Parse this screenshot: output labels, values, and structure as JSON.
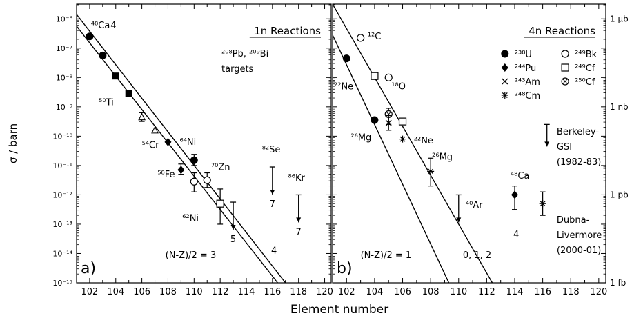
{
  "chart_data": [
    {
      "type": "scatter",
      "panel_label": "a)",
      "title": "1n Reactions",
      "subtitle_lines": [
        "²⁰⁸Pb, ²⁰⁹Bi",
        "targets"
      ],
      "xlabel": "Element number",
      "ylabel": "σ / barn",
      "xlim": [
        101,
        120.5
      ],
      "ylim_log10": [
        -15,
        -5.5
      ],
      "x_ticks": [
        102,
        104,
        106,
        108,
        110,
        112,
        114,
        116,
        118,
        120
      ],
      "y_ticks_log10": [
        -15,
        -14,
        -13,
        -12,
        -11,
        -10,
        -9,
        -8,
        -7,
        -6
      ],
      "y_tick_labels": [
        "10⁻¹⁵",
        "10⁻¹⁴",
        "10⁻¹³",
        "10⁻¹²",
        "10⁻¹¹",
        "10⁻¹⁰",
        "10⁻⁹",
        "10⁻⁸",
        "10⁻⁷",
        "10⁻⁶"
      ],
      "fit_lines": [
        {
          "label": "(N-Z)/2 = 3",
          "x": [
            101,
            117
          ],
          "log10_y": [
            -5.85,
            -15
          ]
        },
        {
          "label": "4",
          "x": [
            101,
            116.4
          ],
          "log10_y": [
            -6.25,
            -15
          ]
        }
      ],
      "series": [
        {
          "marker": "filled-circle",
          "points": [
            {
              "x": 102,
              "log10_y": -6.6
            },
            {
              "x": 103,
              "log10_y": -7.25
            },
            {
              "x": 110,
              "log10_y": -10.82,
              "err_log10": [
                -11.0,
                -10.62
              ]
            }
          ]
        },
        {
          "marker": "filled-square",
          "points": [
            {
              "x": 104,
              "log10_y": -7.95
            },
            {
              "x": 105,
              "log10_y": -8.55
            }
          ]
        },
        {
          "marker": "open-triangle",
          "points": [
            {
              "x": 106,
              "log10_y": -9.35,
              "err_log10": [
                -9.5,
                -9.2
              ]
            },
            {
              "x": 107,
              "log10_y": -9.8
            }
          ]
        },
        {
          "marker": "filled-diamond",
          "points": [
            {
              "x": 108,
              "log10_y": -10.2
            },
            {
              "x": 109,
              "log10_y": -11.15,
              "err_log10": [
                -11.3,
                -10.95
              ]
            }
          ]
        },
        {
          "marker": "open-circle",
          "points": [
            {
              "x": 110,
              "log10_y": -11.55,
              "err_log10": [
                -11.9,
                -11.25
              ]
            },
            {
              "x": 111,
              "log10_y": -11.5,
              "err_log10": [
                -11.75,
                -11.25
              ]
            }
          ]
        },
        {
          "marker": "open-square",
          "points": [
            {
              "x": 112,
              "log10_y": -12.3,
              "err_log10": [
                -13.0,
                -11.8
              ]
            }
          ]
        }
      ],
      "upper_limits": [
        {
          "x": 113,
          "log10_y": -12.25,
          "label": "5"
        },
        {
          "x": 116,
          "log10_y": -11.05,
          "label": "7"
        },
        {
          "x": 118,
          "log10_y": -12.0,
          "label": "7"
        }
      ],
      "annotations": [
        {
          "text": "⁴⁸Ca",
          "x": 102.1,
          "log10_y": -6.32
        },
        {
          "text": "4",
          "x": 103.6,
          "log10_y": -6.32
        },
        {
          "text": "⁵⁰Ti",
          "x": 102.7,
          "log10_y": -8.95
        },
        {
          "text": "⁵⁴Cr",
          "x": 106.0,
          "log10_y": -10.4
        },
        {
          "text": "⁶⁴Ni",
          "x": 108.9,
          "log10_y": -10.3
        },
        {
          "text": "⁵⁸Fe",
          "x": 107.2,
          "log10_y": -11.4
        },
        {
          "text": "⁷⁰Zn",
          "x": 111.3,
          "log10_y": -11.15
        },
        {
          "text": "⁸²Se",
          "x": 115.2,
          "log10_y": -10.55
        },
        {
          "text": "⁸⁶Kr",
          "x": 117.2,
          "log10_y": -11.52
        },
        {
          "text": "⁶²Ni",
          "x": 109.1,
          "log10_y": -12.9
        },
        {
          "text": "(N-Z)/2 = 3",
          "x": 107.8,
          "log10_y": -14.15
        },
        {
          "text": "4",
          "x": 115.9,
          "log10_y": -14.0
        }
      ]
    },
    {
      "type": "scatter",
      "panel_label": "b)",
      "title": "4n Reactions",
      "xlabel": "Element number",
      "ylabel_right": "",
      "xlim": [
        101,
        120.5
      ],
      "ylim_log10": [
        -15,
        -5.5
      ],
      "x_ticks": [
        102,
        104,
        106,
        108,
        110,
        112,
        114,
        116,
        118,
        120
      ],
      "right_ticks_log10": [
        -6,
        -9,
        -12,
        -15
      ],
      "right_tick_labels": [
        "1 μb",
        "1 nb",
        "1 pb",
        "1 fb"
      ],
      "legend": [
        {
          "marker": "filled-circle",
          "label": "²³⁸U"
        },
        {
          "marker": "filled-diamond",
          "label": "²⁴⁴Pu"
        },
        {
          "marker": "cross",
          "label": "²⁴³Am"
        },
        {
          "marker": "asterisk",
          "label": "²⁴⁸Cm"
        },
        {
          "marker": "open-circle",
          "label": "²⁴⁹Bk"
        },
        {
          "marker": "open-square",
          "label": "²⁴⁹Cf"
        },
        {
          "marker": "circle-cross",
          "label": "²⁵⁰Cf"
        }
      ],
      "fit_lines": [
        {
          "label": "(N-Z)/2 = 1",
          "x": [
            101,
            109.3
          ],
          "log10_y": [
            -6.55,
            -15
          ]
        },
        {
          "label": "0, 1, 2",
          "x": [
            101,
            112.4
          ],
          "log10_y": [
            -5.5,
            -15
          ]
        }
      ],
      "series": [
        {
          "marker": "filled-circle",
          "points": [
            {
              "x": 102,
              "log10_y": -7.35
            },
            {
              "x": 104,
              "log10_y": -9.45
            }
          ]
        },
        {
          "marker": "open-circle",
          "points": [
            {
              "x": 103,
              "log10_y": -6.65
            },
            {
              "x": 105,
              "log10_y": -8.0
            }
          ]
        },
        {
          "marker": "open-square",
          "points": [
            {
              "x": 104,
              "log10_y": -7.95
            },
            {
              "x": 106,
              "log10_y": -9.5
            }
          ]
        },
        {
          "marker": "circle-cross",
          "points": [
            {
              "x": 105,
              "log10_y": -9.25,
              "err_log10": [
                -9.6,
                -9.05
              ]
            }
          ]
        },
        {
          "marker": "cross",
          "points": [
            {
              "x": 105,
              "log10_y": -9.55,
              "err_log10": [
                -9.8,
                -9.3
              ]
            }
          ]
        },
        {
          "marker": "asterisk",
          "points": [
            {
              "x": 106,
              "log10_y": -10.1
            },
            {
              "x": 108,
              "log10_y": -11.2,
              "err_log10": [
                -11.7,
                -10.75
              ]
            }
          ]
        },
        {
          "marker": "filled-diamond",
          "points": [
            {
              "x": 114,
              "log10_y": -12.0,
              "err_log10": [
                -12.5,
                -11.7
              ]
            }
          ]
        },
        {
          "marker": "asterisk",
          "points": [
            {
              "x": 116,
              "log10_y": -12.3,
              "err_log10": [
                -12.7,
                -11.9
              ]
            }
          ]
        }
      ],
      "upper_limits": [
        {
          "x": 110,
          "log10_y": -12.0,
          "label": ""
        }
      ],
      "annotations": [
        {
          "text": "¹²C",
          "x": 103.5,
          "log10_y": -6.7
        },
        {
          "text": "¹⁸O",
          "x": 105.2,
          "log10_y": -8.4
        },
        {
          "text": "²²Ne",
          "x": 101.1,
          "log10_y": -8.4
        },
        {
          "text": "²²Ne",
          "x": 106.8,
          "log10_y": -10.25
        },
        {
          "text": "²⁶Mg",
          "x": 102.3,
          "log10_y": -10.15
        },
        {
          "text": "²⁶Mg",
          "x": 108.1,
          "log10_y": -10.8
        },
        {
          "text": "⁴⁰Ar",
          "x": 110.5,
          "log10_y": -12.45
        },
        {
          "text": "⁴⁸Ca",
          "x": 113.7,
          "log10_y": -11.45
        },
        {
          "text": "4",
          "x": 113.9,
          "log10_y": -13.45
        },
        {
          "text": "(N-Z)/2 = 1",
          "x": 103.0,
          "log10_y": -14.15
        },
        {
          "text": "0, 1, 2",
          "x": 110.3,
          "log10_y": -14.15
        }
      ],
      "notes": [
        {
          "lines": [
            "Berkeley-",
            "GSI",
            "(1982-83)"
          ],
          "x": 117.0,
          "log10_y": -9.95
        },
        {
          "lines": [
            "Dubna-",
            "Livermore",
            "(2000-01)"
          ],
          "x": 117.0,
          "log10_y": -12.95
        }
      ],
      "note_arrow": {
        "x": 116.3,
        "log10_y": -9.6
      }
    }
  ]
}
